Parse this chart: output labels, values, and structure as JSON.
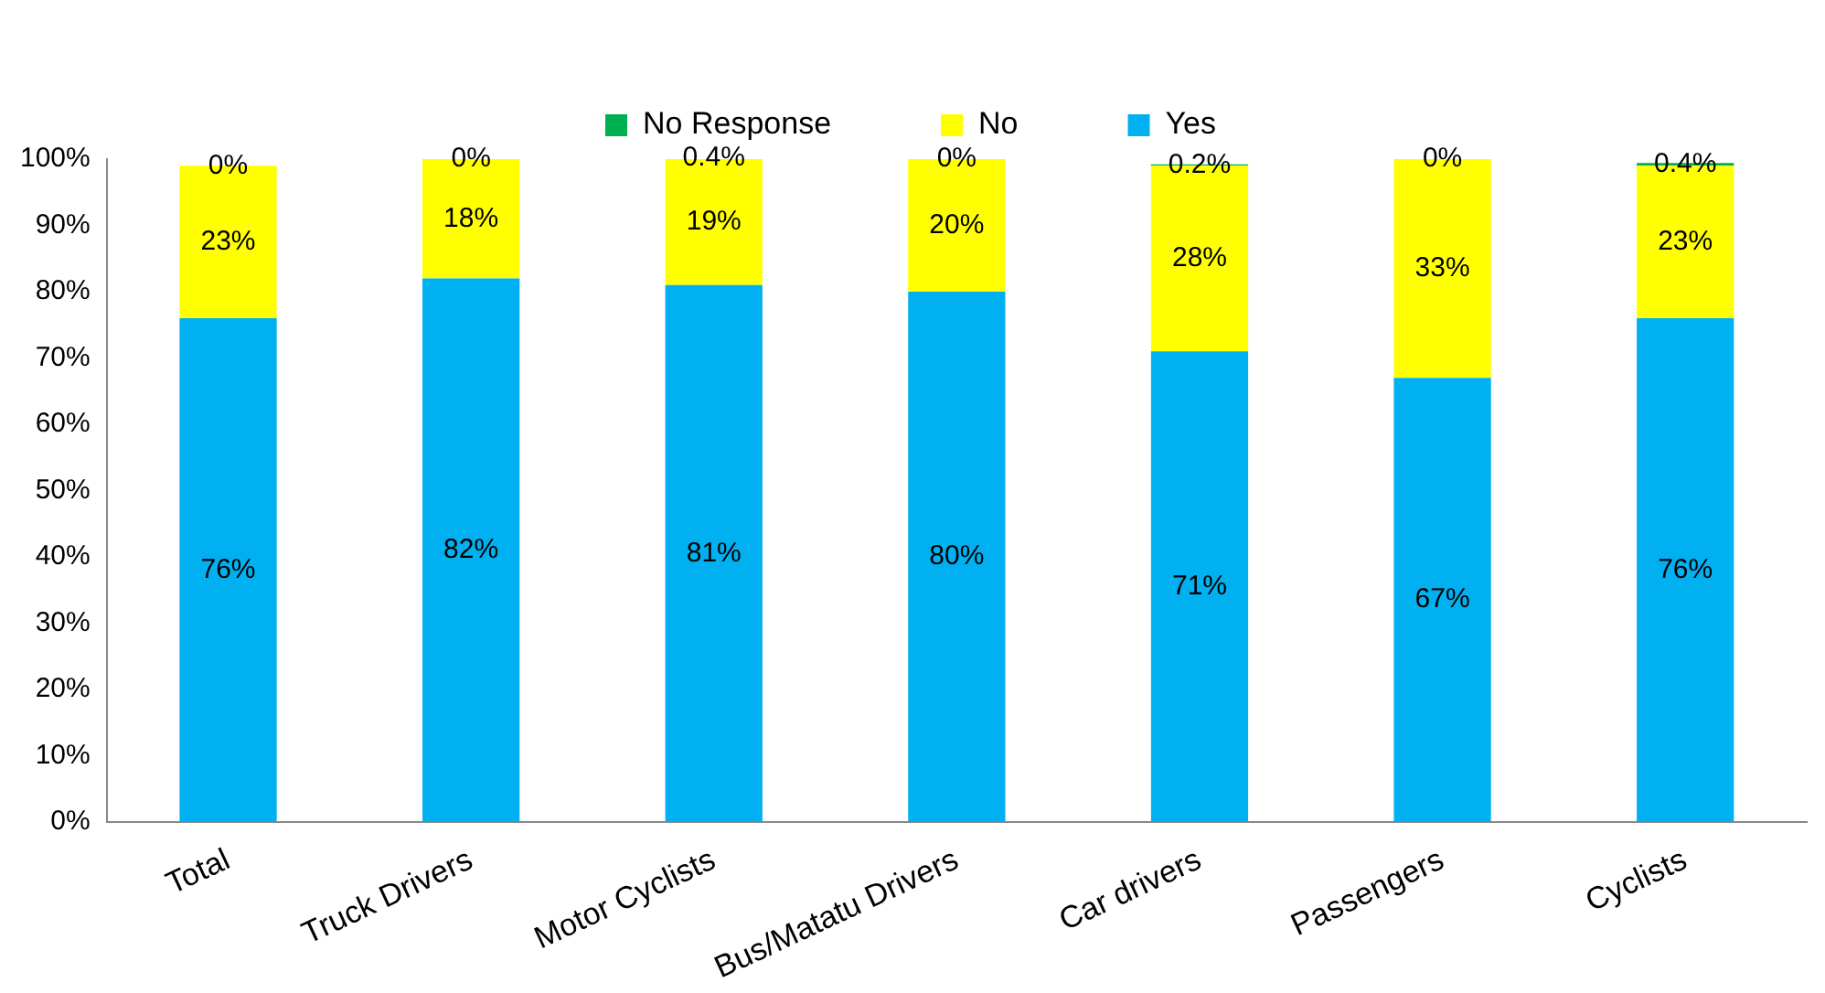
{
  "chart_data": {
    "type": "bar",
    "stacked": true,
    "categories": [
      "Total",
      "Truck Drivers",
      "Motor Cyclists",
      "Bus/Matatu Drivers",
      "Car drivers",
      "Passengers",
      "Cyclists"
    ],
    "series": [
      {
        "name": "Yes",
        "color": "#00b0f0",
        "values": [
          76,
          82,
          81,
          80,
          71,
          67,
          76
        ],
        "value_labels": [
          "76%",
          "82%",
          "81%",
          "80%",
          "71%",
          "67%",
          "76%"
        ]
      },
      {
        "name": "No",
        "color": "#ffff00",
        "values": [
          23,
          18,
          19,
          20,
          28,
          33,
          23
        ],
        "value_labels": [
          "23%",
          "18%",
          "19%",
          "20%",
          "28%",
          "33%",
          "23%"
        ]
      },
      {
        "name": "No Response",
        "color": "#00b050",
        "values": [
          0,
          0,
          0.4,
          0,
          0.2,
          0,
          0.4
        ],
        "value_labels": [
          "0%",
          "0%",
          "0.4%",
          "0%",
          "0.2%",
          "0%",
          "0.4%"
        ]
      }
    ],
    "ylim": [
      0,
      100
    ],
    "yticks": [
      {
        "value": 0,
        "label": "0%"
      },
      {
        "value": 10,
        "label": "10%"
      },
      {
        "value": 20,
        "label": "20%"
      },
      {
        "value": 30,
        "label": "30%"
      },
      {
        "value": 40,
        "label": "40%"
      },
      {
        "value": 50,
        "label": "50%"
      },
      {
        "value": 60,
        "label": "60%"
      },
      {
        "value": 70,
        "label": "70%"
      },
      {
        "value": 80,
        "label": "80%"
      },
      {
        "value": 90,
        "label": "90%"
      },
      {
        "value": 100,
        "label": "100%"
      }
    ],
    "grid": false,
    "legend": "top"
  }
}
